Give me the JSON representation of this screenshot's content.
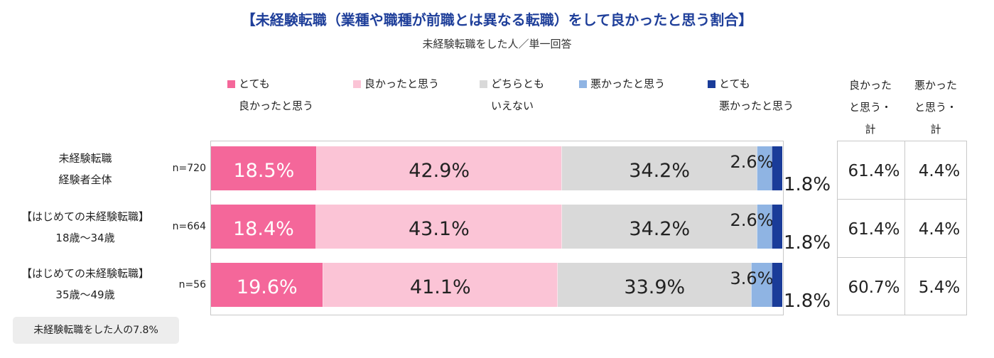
{
  "chart_data": {
    "type": "bar",
    "orientation": "horizontal-stacked-100",
    "title": "【未経験転職（業種や職種が前職とは異なる転職）をして良かったと思う割合】",
    "subtitle": "未経験転職をした人／単一回答",
    "legend": [
      {
        "line1": "とても",
        "line2": "良かったと思う",
        "color": "#f4679a"
      },
      {
        "line1": "良かったと思う",
        "line2": "",
        "color": "#fbc4d6"
      },
      {
        "line1": "どちらとも",
        "line2": "いえない",
        "color": "#d9d9d9"
      },
      {
        "line1": "悪かったと思う",
        "line2": "",
        "color": "#8fb4e3"
      },
      {
        "line1": "とても",
        "line2": "悪かったと思う",
        "color": "#1a3c99"
      }
    ],
    "rows": [
      {
        "label_line1": "未経験転職",
        "label_line2": "経験者全体",
        "n": "n=720",
        "values": [
          18.5,
          42.9,
          34.2,
          2.6,
          1.8
        ],
        "value_labels": [
          "18.5%",
          "42.9%",
          "34.2%",
          "2.6%",
          "1.8%"
        ],
        "good_total": "61.4%",
        "bad_total": "4.4%"
      },
      {
        "label_line1": "【はじめての未経験転職】",
        "label_line2": "18歳～34歳",
        "n": "n=664",
        "values": [
          18.4,
          43.1,
          34.2,
          2.6,
          1.8
        ],
        "value_labels": [
          "18.4%",
          "43.1%",
          "34.2%",
          "2.6%",
          "1.8%"
        ],
        "good_total": "61.4%",
        "bad_total": "4.4%"
      },
      {
        "label_line1": "【はじめての未経験転職】",
        "label_line2": "35歳～49歳",
        "n": "n=56",
        "values": [
          19.6,
          41.1,
          33.9,
          3.6,
          1.8
        ],
        "value_labels": [
          "19.6%",
          "41.1%",
          "33.9%",
          "3.6%",
          "1.8%"
        ],
        "good_total": "60.7%",
        "bad_total": "5.4%"
      }
    ],
    "total_headers": [
      {
        "line1": "良かった",
        "line2": "と思う・",
        "line3": "計"
      },
      {
        "line1": "悪かった",
        "line2": "と思う・",
        "line3": "計"
      }
    ]
  },
  "note": "未経験転職をした人の7.8%"
}
